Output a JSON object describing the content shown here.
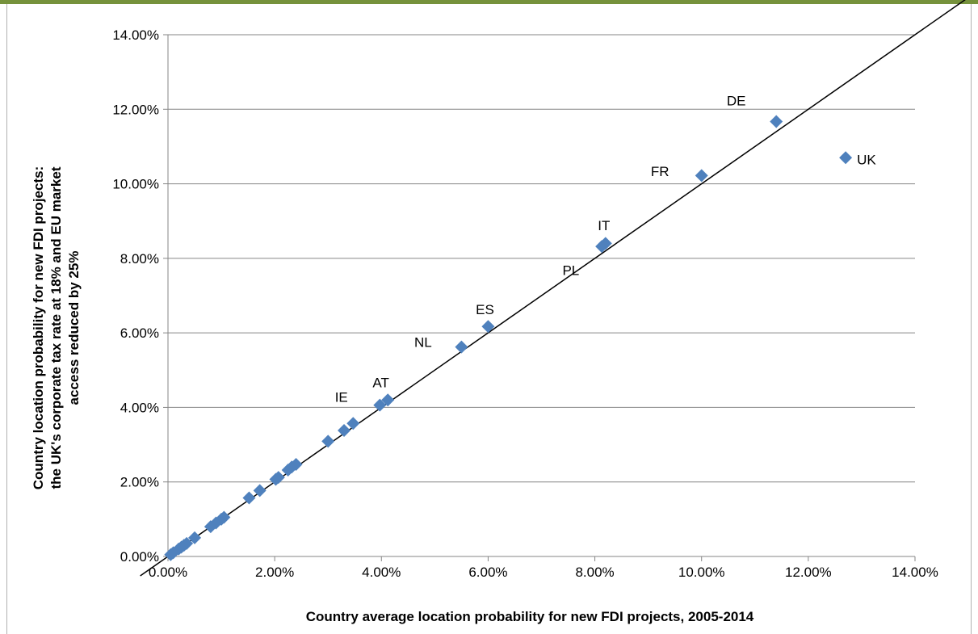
{
  "colors": {
    "top_border": "#76923C",
    "point": "#4F81BD",
    "gridline": "#868686",
    "line": "#000000"
  },
  "chart_data": {
    "type": "scatter",
    "title": "",
    "xlabel": "Country average location probability for new FDI projects, 2005-2014",
    "ylabel_lines": [
      "Country location probability for new FDI projects:",
      "the UK's corporate tax rate at 18% and EU market",
      "access reduced by 25%"
    ],
    "xlim": [
      0,
      0.14
    ],
    "ylim": [
      0,
      0.14
    ],
    "x_ticks": [
      0,
      0.02,
      0.04,
      0.06,
      0.08,
      0.1,
      0.12,
      0.14
    ],
    "y_ticks": [
      0,
      0.02,
      0.04,
      0.06,
      0.08,
      0.1,
      0.12,
      0.14
    ],
    "x_tick_labels": [
      "0.00%",
      "2.00%",
      "4.00%",
      "6.00%",
      "8.00%",
      "10.00%",
      "12.00%",
      "14.00%"
    ],
    "y_tick_labels": [
      "0.00%",
      "2.00%",
      "4.00%",
      "6.00%",
      "8.00%",
      "10.00%",
      "12.00%",
      "14.00%"
    ],
    "grid": "horizontal",
    "reference_line": "45-degree line (y = x)",
    "points": [
      {
        "x": 0.0005,
        "y": 0.0005
      },
      {
        "x": 0.001,
        "y": 0.001
      },
      {
        "x": 0.002,
        "y": 0.002
      },
      {
        "x": 0.0025,
        "y": 0.0025
      },
      {
        "x": 0.003,
        "y": 0.003
      },
      {
        "x": 0.0035,
        "y": 0.0035
      },
      {
        "x": 0.005,
        "y": 0.005
      },
      {
        "x": 0.008,
        "y": 0.008
      },
      {
        "x": 0.009,
        "y": 0.009
      },
      {
        "x": 0.01,
        "y": 0.01
      },
      {
        "x": 0.0105,
        "y": 0.0105
      },
      {
        "x": 0.0152,
        "y": 0.0157
      },
      {
        "x": 0.0172,
        "y": 0.0177
      },
      {
        "x": 0.0202,
        "y": 0.0207
      },
      {
        "x": 0.0207,
        "y": 0.0212
      },
      {
        "x": 0.0225,
        "y": 0.0232
      },
      {
        "x": 0.0232,
        "y": 0.024
      },
      {
        "x": 0.024,
        "y": 0.0247
      },
      {
        "x": 0.03,
        "y": 0.0309
      },
      {
        "x": 0.033,
        "y": 0.0338
      },
      {
        "x": 0.0347,
        "y": 0.0357
      },
      {
        "x": 0.0397,
        "y": 0.0406
      },
      {
        "x": 0.0412,
        "y": 0.042
      },
      {
        "x": 0.055,
        "y": 0.0562,
        "label": "NL"
      },
      {
        "x": 0.06,
        "y": 0.0617,
        "label": "ES"
      },
      {
        "x": 0.0813,
        "y": 0.0832
      },
      {
        "x": 0.082,
        "y": 0.084
      },
      {
        "x": 0.1,
        "y": 0.1022,
        "label": "FR"
      },
      {
        "x": 0.114,
        "y": 0.1167,
        "label": "DE"
      },
      {
        "x": 0.127,
        "y": 0.107,
        "label": "UK"
      }
    ],
    "annotations": [
      {
        "text": "IE",
        "x": 0.0325,
        "y": 0.0425
      },
      {
        "text": "AT",
        "x": 0.0399,
        "y": 0.0464
      },
      {
        "text": "NL",
        "x": 0.0478,
        "y": 0.0572
      },
      {
        "text": "ES",
        "x": 0.0594,
        "y": 0.066
      },
      {
        "text": "PL",
        "x": 0.0755,
        "y": 0.0765
      },
      {
        "text": "IT",
        "x": 0.0817,
        "y": 0.0885
      },
      {
        "text": "FR",
        "x": 0.0922,
        "y": 0.103
      },
      {
        "text": "DE",
        "x": 0.1065,
        "y": 0.122
      },
      {
        "text": "UK",
        "x": 0.1309,
        "y": 0.1062
      }
    ]
  }
}
